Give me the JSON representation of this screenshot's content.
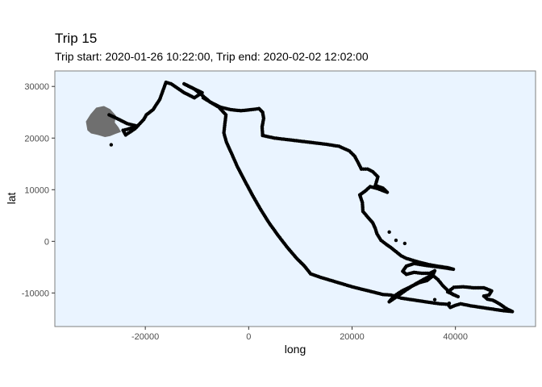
{
  "chart_data": {
    "type": "scatter",
    "title": "Trip 15",
    "subtitle": "Trip start: 2020-01-26 10:22:00, Trip end: 2020-02-02 12:02:00",
    "xlabel": "long",
    "ylabel": "lat",
    "xlim": [
      -37500,
      55500
    ],
    "ylim": [
      -16500,
      33000
    ],
    "x_ticks": [
      -20000,
      0,
      20000,
      40000
    ],
    "x_tick_labels": [
      "-20000",
      "0",
      "20000",
      "40000"
    ],
    "y_ticks": [
      -10000,
      0,
      10000,
      20000,
      30000
    ],
    "y_tick_labels": [
      "-10000",
      "0",
      "10000",
      "20000",
      "30000"
    ],
    "grid": false,
    "legend": "none",
    "colors": {
      "panel_bg": "#eaf4ff",
      "panel_border": "#7f7f7f",
      "land": "#6f6f6f",
      "points": "#000000"
    },
    "track": [
      [
        -27000,
        24500
      ],
      [
        -25500,
        23800
      ],
      [
        -23500,
        22800
      ],
      [
        -21500,
        22300
      ],
      [
        -22500,
        22000
      ],
      [
        -23500,
        21700
      ],
      [
        -24300,
        21500
      ],
      [
        -23800,
        20600
      ],
      [
        -22000,
        21800
      ],
      [
        -20300,
        23600
      ],
      [
        -19800,
        24500
      ],
      [
        -18500,
        25500
      ],
      [
        -17200,
        27500
      ],
      [
        -16000,
        30800
      ],
      [
        -15000,
        30500
      ],
      [
        -12500,
        28800
      ],
      [
        -10500,
        27800
      ],
      [
        -9000,
        28800
      ],
      [
        -10500,
        29500
      ],
      [
        -12500,
        30500
      ],
      [
        -10500,
        29500
      ],
      [
        -9000,
        28300
      ],
      [
        -7500,
        27000
      ],
      [
        -5500,
        26000
      ],
      [
        -3500,
        25500
      ],
      [
        -1500,
        25300
      ],
      [
        500,
        25500
      ],
      [
        2000,
        25700
      ],
      [
        2700,
        25000
      ],
      [
        2900,
        23800
      ],
      [
        2600,
        22200
      ],
      [
        2700,
        20500
      ],
      [
        5000,
        20000
      ],
      [
        7500,
        19700
      ],
      [
        10000,
        19400
      ],
      [
        12500,
        19100
      ],
      [
        15000,
        18800
      ],
      [
        17500,
        18400
      ],
      [
        19500,
        17500
      ],
      [
        20500,
        16500
      ],
      [
        21200,
        15200
      ],
      [
        21800,
        14000
      ],
      [
        23000,
        14000
      ],
      [
        24000,
        13500
      ],
      [
        25000,
        12500
      ],
      [
        24500,
        10800
      ],
      [
        26000,
        10300
      ],
      [
        26800,
        9500
      ],
      [
        25000,
        10200
      ],
      [
        23500,
        10600
      ],
      [
        22500,
        9700
      ],
      [
        21500,
        9000
      ],
      [
        22000,
        7500
      ],
      [
        22100,
        5800
      ],
      [
        23200,
        4500
      ],
      [
        24000,
        3600
      ],
      [
        24500,
        2500
      ],
      [
        24800,
        1500
      ],
      [
        25600,
        200
      ],
      [
        26500,
        -500
      ],
      [
        27500,
        -1200
      ],
      [
        28500,
        -2000
      ],
      [
        29500,
        -2800
      ],
      [
        30500,
        -3300
      ],
      [
        31800,
        -3700
      ],
      [
        33200,
        -4100
      ],
      [
        34800,
        -4500
      ],
      [
        36500,
        -4800
      ],
      [
        38500,
        -5100
      ],
      [
        39600,
        -5400
      ],
      [
        37000,
        -5000
      ],
      [
        34500,
        -4700
      ],
      [
        32000,
        -4300
      ],
      [
        30500,
        -4800
      ],
      [
        29800,
        -5800
      ],
      [
        30500,
        -6400
      ],
      [
        32000,
        -6000
      ],
      [
        33500,
        -6200
      ],
      [
        35000,
        -6200
      ],
      [
        36000,
        -5700
      ],
      [
        35500,
        -6800
      ],
      [
        34500,
        -7600
      ],
      [
        33000,
        -8000
      ],
      [
        31500,
        -8700
      ],
      [
        29500,
        -9700
      ],
      [
        28000,
        -10700
      ],
      [
        27200,
        -11700
      ],
      [
        28800,
        -10600
      ],
      [
        30500,
        -9400
      ],
      [
        32200,
        -8300
      ],
      [
        33800,
        -7400
      ],
      [
        35500,
        -6500
      ],
      [
        36600,
        -7400
      ],
      [
        37500,
        -8500
      ],
      [
        38500,
        -9500
      ],
      [
        39500,
        -10300
      ],
      [
        40500,
        -10700
      ],
      [
        38500,
        -9800
      ],
      [
        39700,
        -8900
      ],
      [
        41500,
        -8800
      ],
      [
        43500,
        -9000
      ],
      [
        45500,
        -9000
      ],
      [
        47000,
        -9600
      ],
      [
        46500,
        -10400
      ],
      [
        45500,
        -10600
      ],
      [
        46200,
        -11200
      ],
      [
        47200,
        -11400
      ],
      [
        48000,
        -11800
      ],
      [
        48800,
        -12300
      ],
      [
        49500,
        -12800
      ],
      [
        50200,
        -13200
      ],
      [
        51000,
        -13600
      ],
      [
        49000,
        -13400
      ],
      [
        47000,
        -13100
      ],
      [
        45000,
        -12800
      ],
      [
        43000,
        -12500
      ],
      [
        41000,
        -12100
      ],
      [
        40000,
        -12400
      ],
      [
        39000,
        -12800
      ],
      [
        38500,
        -12200
      ],
      [
        37000,
        -12100
      ],
      [
        35500,
        -11900
      ],
      [
        33500,
        -11600
      ],
      [
        31500,
        -11300
      ],
      [
        29500,
        -11000
      ],
      [
        27500,
        -10400
      ],
      [
        26000,
        -10300
      ],
      [
        24000,
        -9800
      ],
      [
        22000,
        -9300
      ],
      [
        20000,
        -8800
      ],
      [
        18000,
        -8200
      ],
      [
        16000,
        -7600
      ],
      [
        14000,
        -7000
      ],
      [
        12000,
        -6300
      ],
      [
        10800,
        -4800
      ],
      [
        9200,
        -3200
      ],
      [
        7500,
        -1200
      ],
      [
        5800,
        1000
      ],
      [
        4000,
        3500
      ],
      [
        2300,
        6200
      ],
      [
        700,
        9000
      ],
      [
        -800,
        11800
      ],
      [
        -2200,
        14500
      ],
      [
        -3300,
        17000
      ],
      [
        -4300,
        19200
      ],
      [
        -4800,
        21000
      ],
      [
        -4600,
        22800
      ],
      [
        -4400,
        24500
      ],
      [
        -5800,
        26000
      ],
      [
        -7500,
        27000
      ],
      [
        -8800,
        27800
      ]
    ],
    "loose_points": [
      [
        -26600,
        18700
      ],
      [
        27200,
        1800
      ],
      [
        28500,
        200
      ],
      [
        30200,
        -400
      ],
      [
        36000,
        -11300
      ],
      [
        38800,
        -12000
      ]
    ],
    "land_outline": [
      [
        -31200,
        21500
      ],
      [
        -31500,
        23200
      ],
      [
        -30600,
        24600
      ],
      [
        -29500,
        25900
      ],
      [
        -28000,
        26200
      ],
      [
        -26800,
        25600
      ],
      [
        -25700,
        24400
      ],
      [
        -25900,
        23000
      ],
      [
        -25200,
        22100
      ],
      [
        -24700,
        21200
      ],
      [
        -25800,
        20800
      ],
      [
        -26800,
        20400
      ],
      [
        -27800,
        20200
      ],
      [
        -29200,
        20600
      ],
      [
        -30500,
        20900
      ]
    ]
  }
}
